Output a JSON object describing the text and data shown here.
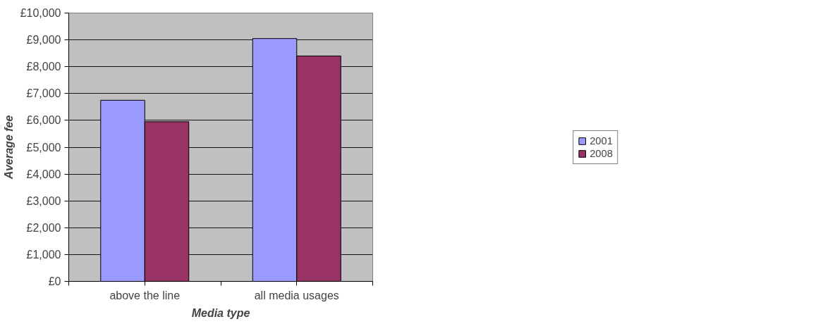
{
  "chart_data": {
    "type": "bar",
    "xlabel": "Media type",
    "ylabel": "Average fee",
    "categories": [
      "above the line",
      "all media usages"
    ],
    "series": [
      {
        "name": "2001",
        "color": "#9999ff",
        "values": [
          6750,
          9050
        ]
      },
      {
        "name": "2008",
        "color": "#993366",
        "values": [
          5950,
          8400
        ]
      }
    ],
    "ylim": [
      0,
      10000
    ],
    "yticks": [
      {
        "value": 0,
        "label": "£0"
      },
      {
        "value": 1000,
        "label": "£1,000"
      },
      {
        "value": 2000,
        "label": "£2,000"
      },
      {
        "value": 3000,
        "label": "£3,000"
      },
      {
        "value": 4000,
        "label": "£4,000"
      },
      {
        "value": 5000,
        "label": "£5,000"
      },
      {
        "value": 6000,
        "label": "£6,000"
      },
      {
        "value": 7000,
        "label": "£7,000"
      },
      {
        "value": 8000,
        "label": "£8,000"
      },
      {
        "value": 9000,
        "label": "£9,000"
      },
      {
        "value": 10000,
        "label": "£10,000"
      }
    ],
    "grid": "y",
    "legend": "right"
  }
}
